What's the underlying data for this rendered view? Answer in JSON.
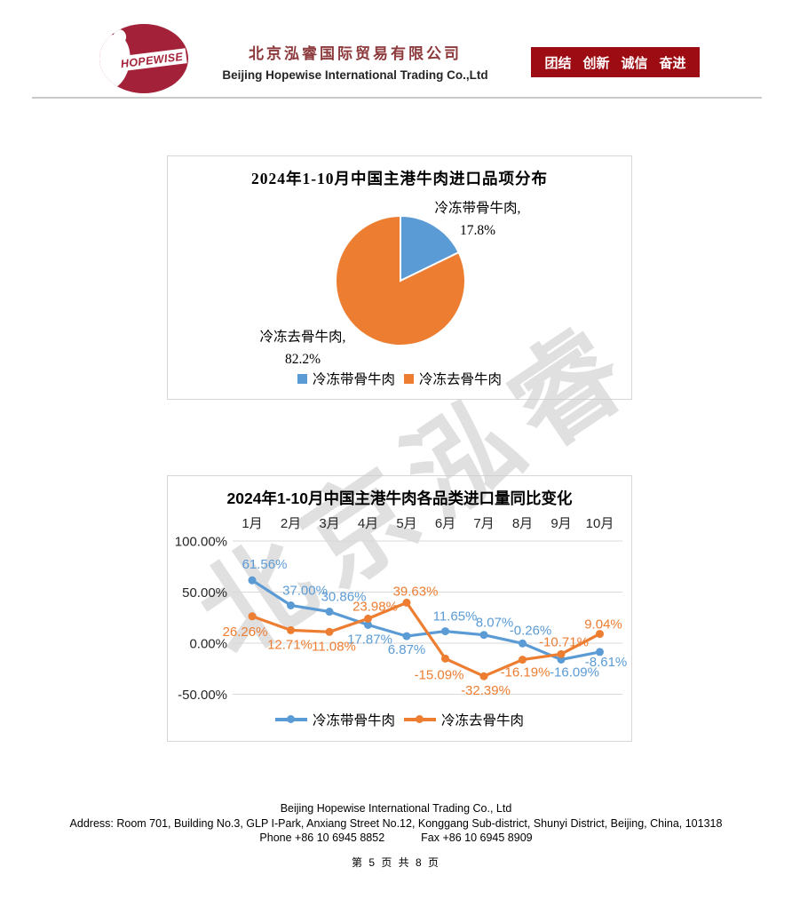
{
  "page": {
    "watermark_text": "北京泓睿",
    "page_number": "第 5 页 共 8 页"
  },
  "header": {
    "logo_text": "HOPEWISE",
    "company_name_zh": "北京泓睿国际贸易有限公司",
    "company_name_en": "Beijing Hopewise International Trading Co.,Ltd",
    "banner_items": [
      "团结",
      "创新",
      "诚信",
      "奋进"
    ],
    "banner_color": "#9E0C13"
  },
  "footer": {
    "company": "Beijing Hopewise International Trading Co., Ltd",
    "address": "Address: Room 701, Building No.3, GLP I-Park, Anxiang Street No.12, Konggang Sub-district, Shunyi District, Beijing, China, 101318",
    "phone": "Phone +86 10 6945 8852",
    "fax": "Fax +86 10 6945 8909"
  },
  "chart_data": [
    {
      "type": "pie",
      "title": "2024年1-10月中国主港牛肉进口品项分布",
      "labels": [
        "冷冻带骨牛肉",
        "冷冻去骨牛肉"
      ],
      "values": [
        17.8,
        82.2
      ],
      "colors": [
        "#5B9BD5",
        "#ED7D31"
      ],
      "legend_position": "bottom",
      "start_angle_deg": 0,
      "direction": "clockwise"
    },
    {
      "type": "line",
      "title": "2024年1-10月中国主港牛肉各品类进口量同比变化",
      "categories": [
        "1月",
        "2月",
        "3月",
        "4月",
        "5月",
        "6月",
        "7月",
        "8月",
        "9月",
        "10月"
      ],
      "series": [
        {
          "name": "冷冻带骨牛肉",
          "color": "#5B9BD5",
          "values": [
            61.56,
            37.0,
            30.86,
            17.87,
            6.87,
            11.65,
            8.07,
            -0.26,
            -16.09,
            -8.61
          ],
          "label_offsets": [
            [
              14,
              -13
            ],
            [
              16,
              -12
            ],
            [
              16,
              -12
            ],
            [
              2,
              21
            ],
            [
              0,
              20
            ],
            [
              11,
              -12
            ],
            [
              12,
              -9
            ],
            [
              9,
              -10
            ],
            [
              15,
              19
            ],
            [
              7,
              16
            ]
          ]
        },
        {
          "name": "冷冻去骨牛肉",
          "color": "#ED7D31",
          "values": [
            26.26,
            12.71,
            11.08,
            23.98,
            39.63,
            -15.09,
            -32.39,
            -16.19,
            -10.71,
            9.04
          ],
          "label_offsets": [
            [
              -8,
              22
            ],
            [
              -1,
              21
            ],
            [
              5,
              21
            ],
            [
              8,
              -9
            ],
            [
              10,
              -8
            ],
            [
              -7,
              23
            ],
            [
              2,
              21
            ],
            [
              3,
              19
            ],
            [
              3,
              -9
            ],
            [
              4,
              -6
            ]
          ]
        }
      ],
      "y_ticks": [
        "100.00%",
        "50.00%",
        "0.00%",
        "-50.00%"
      ],
      "y_tick_values": [
        100,
        50,
        0,
        -50
      ],
      "ylim": [
        -50,
        100
      ],
      "grid": true,
      "x_axis_position": "top",
      "legend_position": "bottom",
      "data_labels": true
    }
  ]
}
